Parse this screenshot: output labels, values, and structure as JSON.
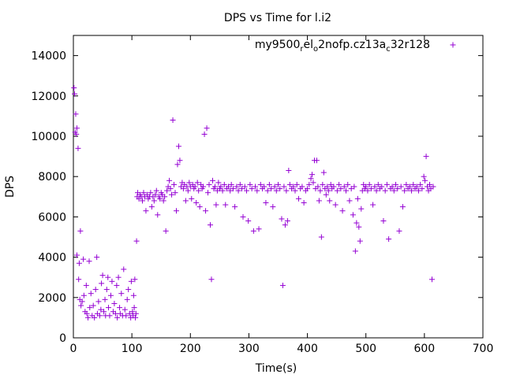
{
  "chart_data": {
    "type": "scatter",
    "title": "DPS vs Time for l.i2",
    "xlabel": "Time(s)",
    "ylabel": "DPS",
    "xlim": [
      0,
      700
    ],
    "ylim": [
      0,
      15000
    ],
    "xticks": [
      0,
      100,
      200,
      300,
      400,
      500,
      600,
      700
    ],
    "yticks": [
      0,
      2000,
      4000,
      6000,
      8000,
      10000,
      12000,
      14000
    ],
    "grid": false,
    "legend_position": "top-right",
    "marker": "plus",
    "color": "#9400d3",
    "series": [
      {
        "name": "my9500_rel_o2nofp.cz13a_c32r128",
        "legend": {
          "base": "my9500",
          "sub1": "r",
          "mid1": "el",
          "sub2": "o",
          "mid2": "2nofp.cz13a",
          "sub3": "c",
          "tail": "32r128"
        },
        "points": [
          [
            1,
            12400
          ],
          [
            2,
            12100
          ],
          [
            3,
            10200
          ],
          [
            4,
            11100
          ],
          [
            5,
            10100
          ],
          [
            6,
            10400
          ],
          [
            8,
            9400
          ],
          [
            6,
            4100
          ],
          [
            9,
            2900
          ],
          [
            10,
            3700
          ],
          [
            11,
            1900
          ],
          [
            12,
            5300
          ],
          [
            13,
            1600
          ],
          [
            15,
            1800
          ],
          [
            17,
            3900
          ],
          [
            18,
            2100
          ],
          [
            20,
            1300
          ],
          [
            22,
            2600
          ],
          [
            23,
            1200
          ],
          [
            25,
            1000
          ],
          [
            27,
            3800
          ],
          [
            28,
            1500
          ],
          [
            30,
            2200
          ],
          [
            32,
            1100
          ],
          [
            34,
            1600
          ],
          [
            36,
            1000
          ],
          [
            38,
            2400
          ],
          [
            40,
            4000
          ],
          [
            41,
            1200
          ],
          [
            43,
            1800
          ],
          [
            45,
            1100
          ],
          [
            47,
            1400
          ],
          [
            48,
            2700
          ],
          [
            50,
            3100
          ],
          [
            52,
            1300
          ],
          [
            54,
            1900
          ],
          [
            55,
            1100
          ],
          [
            57,
            2400
          ],
          [
            59,
            3000
          ],
          [
            60,
            1500
          ],
          [
            62,
            1100
          ],
          [
            64,
            2100
          ],
          [
            66,
            2800
          ],
          [
            68,
            1300
          ],
          [
            70,
            1700
          ],
          [
            72,
            1200
          ],
          [
            74,
            2600
          ],
          [
            75,
            1000
          ],
          [
            77,
            3000
          ],
          [
            79,
            1500
          ],
          [
            80,
            1200
          ],
          [
            82,
            2200
          ],
          [
            84,
            1100
          ],
          [
            86,
            3400
          ],
          [
            88,
            1400
          ],
          [
            90,
            1100
          ],
          [
            92,
            1900
          ],
          [
            94,
            2400
          ],
          [
            96,
            1200
          ],
          [
            98,
            1000
          ],
          [
            99,
            2800
          ],
          [
            101,
            1300
          ],
          [
            102,
            1100
          ],
          [
            103,
            2100
          ],
          [
            104,
            1500
          ],
          [
            105,
            2900
          ],
          [
            106,
            1000
          ],
          [
            107,
            1200
          ],
          [
            108,
            4800
          ],
          [
            109,
            7000
          ],
          [
            110,
            7200
          ],
          [
            112,
            6900
          ],
          [
            114,
            7100
          ],
          [
            116,
            7000
          ],
          [
            118,
            6800
          ],
          [
            120,
            7200
          ],
          [
            122,
            7000
          ],
          [
            124,
            6300
          ],
          [
            126,
            7100
          ],
          [
            128,
            6900
          ],
          [
            130,
            7000
          ],
          [
            132,
            7200
          ],
          [
            134,
            6500
          ],
          [
            136,
            7000
          ],
          [
            138,
            6800
          ],
          [
            140,
            7100
          ],
          [
            142,
            7300
          ],
          [
            144,
            6100
          ],
          [
            146,
            7000
          ],
          [
            148,
            6900
          ],
          [
            150,
            7200
          ],
          [
            152,
            7100
          ],
          [
            154,
            6800
          ],
          [
            156,
            7000
          ],
          [
            158,
            5300
          ],
          [
            160,
            7300
          ],
          [
            162,
            7500
          ],
          [
            164,
            7800
          ],
          [
            166,
            7400
          ],
          [
            168,
            7100
          ],
          [
            170,
            10800
          ],
          [
            172,
            7600
          ],
          [
            174,
            7200
          ],
          [
            176,
            6300
          ],
          [
            178,
            8600
          ],
          [
            180,
            9500
          ],
          [
            182,
            8800
          ],
          [
            184,
            7500
          ],
          [
            186,
            7700
          ],
          [
            188,
            7400
          ],
          [
            190,
            7600
          ],
          [
            192,
            6800
          ],
          [
            194,
            7500
          ],
          [
            196,
            7300
          ],
          [
            198,
            7700
          ],
          [
            200,
            7500
          ],
          [
            202,
            6900
          ],
          [
            204,
            7600
          ],
          [
            206,
            7400
          ],
          [
            208,
            7500
          ],
          [
            210,
            6700
          ],
          [
            212,
            7700
          ],
          [
            214,
            7300
          ],
          [
            216,
            6500
          ],
          [
            218,
            7600
          ],
          [
            220,
            7400
          ],
          [
            222,
            7500
          ],
          [
            224,
            10100
          ],
          [
            226,
            6300
          ],
          [
            228,
            10400
          ],
          [
            230,
            7200
          ],
          [
            232,
            7600
          ],
          [
            234,
            5600
          ],
          [
            236,
            2900
          ],
          [
            238,
            7800
          ],
          [
            240,
            7400
          ],
          [
            242,
            7500
          ],
          [
            244,
            6600
          ],
          [
            246,
            7300
          ],
          [
            248,
            7700
          ],
          [
            250,
            7400
          ],
          [
            252,
            7500
          ],
          [
            255,
            7300
          ],
          [
            258,
            7600
          ],
          [
            260,
            6600
          ],
          [
            262,
            7400
          ],
          [
            265,
            7500
          ],
          [
            268,
            7300
          ],
          [
            270,
            7600
          ],
          [
            273,
            7400
          ],
          [
            276,
            6500
          ],
          [
            279,
            7500
          ],
          [
            282,
            7300
          ],
          [
            285,
            7600
          ],
          [
            288,
            7400
          ],
          [
            290,
            6000
          ],
          [
            293,
            7500
          ],
          [
            296,
            7300
          ],
          [
            299,
            5800
          ],
          [
            302,
            7600
          ],
          [
            305,
            7400
          ],
          [
            308,
            5300
          ],
          [
            311,
            7500
          ],
          [
            314,
            7300
          ],
          [
            317,
            5400
          ],
          [
            320,
            7600
          ],
          [
            323,
            7400
          ],
          [
            326,
            7500
          ],
          [
            329,
            6700
          ],
          [
            332,
            7300
          ],
          [
            335,
            7600
          ],
          [
            338,
            7400
          ],
          [
            341,
            6500
          ],
          [
            344,
            7500
          ],
          [
            347,
            7300
          ],
          [
            350,
            7600
          ],
          [
            353,
            7400
          ],
          [
            356,
            5900
          ],
          [
            358,
            2600
          ],
          [
            360,
            7500
          ],
          [
            362,
            5600
          ],
          [
            364,
            7300
          ],
          [
            366,
            5800
          ],
          [
            368,
            8300
          ],
          [
            370,
            7600
          ],
          [
            373,
            7400
          ],
          [
            376,
            7500
          ],
          [
            379,
            7300
          ],
          [
            382,
            7600
          ],
          [
            385,
            6900
          ],
          [
            388,
            7400
          ],
          [
            391,
            7500
          ],
          [
            394,
            6700
          ],
          [
            397,
            7300
          ],
          [
            400,
            7400
          ],
          [
            403,
            7600
          ],
          [
            406,
            7900
          ],
          [
            408,
            8100
          ],
          [
            410,
            7700
          ],
          [
            412,
            8800
          ],
          [
            414,
            7400
          ],
          [
            416,
            8800
          ],
          [
            418,
            7500
          ],
          [
            420,
            6800
          ],
          [
            422,
            7300
          ],
          [
            424,
            5000
          ],
          [
            426,
            7600
          ],
          [
            428,
            8200
          ],
          [
            430,
            7400
          ],
          [
            432,
            7100
          ],
          [
            434,
            7500
          ],
          [
            436,
            7300
          ],
          [
            438,
            6800
          ],
          [
            440,
            7600
          ],
          [
            442,
            7400
          ],
          [
            445,
            7500
          ],
          [
            448,
            6600
          ],
          [
            451,
            7300
          ],
          [
            454,
            7600
          ],
          [
            457,
            7400
          ],
          [
            460,
            6300
          ],
          [
            463,
            7500
          ],
          [
            466,
            7300
          ],
          [
            469,
            7600
          ],
          [
            472,
            6800
          ],
          [
            475,
            7400
          ],
          [
            478,
            6100
          ],
          [
            480,
            7500
          ],
          [
            482,
            4300
          ],
          [
            484,
            5700
          ],
          [
            486,
            6900
          ],
          [
            488,
            5500
          ],
          [
            490,
            4800
          ],
          [
            492,
            6400
          ],
          [
            494,
            7300
          ],
          [
            496,
            7600
          ],
          [
            498,
            7400
          ],
          [
            500,
            7500
          ],
          [
            503,
            7300
          ],
          [
            506,
            7600
          ],
          [
            509,
            7400
          ],
          [
            512,
            6600
          ],
          [
            515,
            7500
          ],
          [
            518,
            7300
          ],
          [
            521,
            7600
          ],
          [
            524,
            7400
          ],
          [
            527,
            7500
          ],
          [
            530,
            5800
          ],
          [
            533,
            7300
          ],
          [
            536,
            7600
          ],
          [
            539,
            4900
          ],
          [
            542,
            7400
          ],
          [
            545,
            7500
          ],
          [
            548,
            7300
          ],
          [
            551,
            7600
          ],
          [
            554,
            7400
          ],
          [
            557,
            5300
          ],
          [
            560,
            7500
          ],
          [
            563,
            6500
          ],
          [
            566,
            7300
          ],
          [
            569,
            7600
          ],
          [
            572,
            7400
          ],
          [
            575,
            7500
          ],
          [
            578,
            7300
          ],
          [
            581,
            7600
          ],
          [
            584,
            7400
          ],
          [
            587,
            7500
          ],
          [
            590,
            7300
          ],
          [
            593,
            7600
          ],
          [
            596,
            7400
          ],
          [
            599,
            8000
          ],
          [
            601,
            7800
          ],
          [
            603,
            9000
          ],
          [
            605,
            7500
          ],
          [
            607,
            7300
          ],
          [
            609,
            7600
          ],
          [
            611,
            7400
          ],
          [
            613,
            2900
          ],
          [
            615,
            7500
          ]
        ]
      }
    ]
  }
}
